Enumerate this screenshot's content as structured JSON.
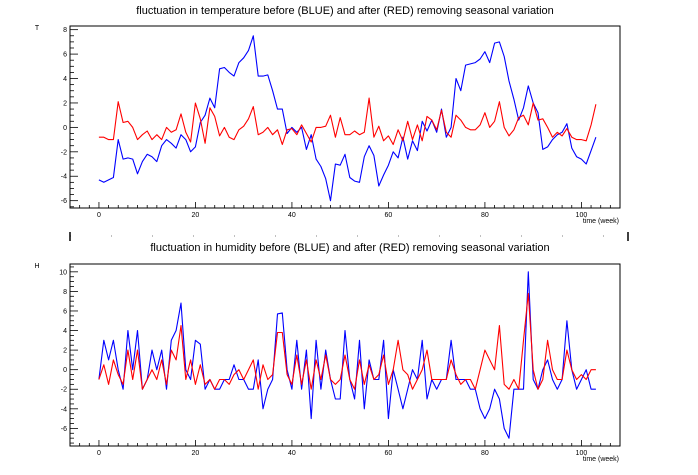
{
  "chart_data": [
    {
      "type": "line",
      "title": "fluctuation in temperature before (BLUE) and after (RED) removing seasonal variation",
      "xlabel": "time (week)",
      "ylabel": "T",
      "xlim": [
        -6,
        108
      ],
      "ylim": [
        -6.6,
        8.3
      ],
      "xticks": [
        0,
        20,
        40,
        60,
        80,
        100
      ],
      "yticks": [
        -6,
        -4,
        -2,
        0,
        2,
        4,
        6,
        8
      ],
      "grid": false,
      "series": [
        {
          "color": "#0000ff",
          "x": [
            0,
            1,
            2,
            3,
            4,
            5,
            6,
            7,
            8,
            9,
            10,
            11,
            12,
            13,
            14,
            15,
            16,
            17,
            18,
            19,
            20,
            21,
            22,
            23,
            24,
            25,
            26,
            27,
            28,
            29,
            30,
            31,
            32,
            33,
            34,
            35,
            36,
            37,
            38,
            39,
            40,
            41,
            42,
            43,
            44,
            45,
            46,
            47,
            48,
            49,
            50,
            51,
            52,
            53,
            54,
            55,
            56,
            57,
            58,
            59,
            60,
            61,
            62,
            63,
            64,
            65,
            66,
            67,
            68,
            69,
            70,
            71,
            72,
            73,
            74,
            75,
            76,
            77,
            78,
            79,
            80,
            81,
            82,
            83,
            84,
            85,
            86,
            87,
            88,
            89,
            90,
            91,
            92,
            93,
            94,
            95,
            96,
            97,
            98,
            99,
            100,
            101,
            102,
            103
          ],
          "values": [
            -4.3,
            -4.5,
            -4.3,
            -4.1,
            -1.0,
            -2.6,
            -2.5,
            -2.6,
            -3.8,
            -2.8,
            -2.2,
            -2.4,
            -2.8,
            -1.5,
            -1.0,
            -1.3,
            -1.7,
            -0.6,
            -1.0,
            -2.0,
            -1.6,
            0.4,
            1.0,
            2.4,
            1.6,
            4.8,
            4.9,
            4.5,
            4.2,
            5.3,
            5.7,
            6.3,
            7.5,
            4.2,
            4.2,
            4.3,
            3.0,
            1.5,
            1.5,
            -0.5,
            0.0,
            -0.4,
            0.0,
            -1.8,
            -0.6,
            -2.6,
            -3.2,
            -4.2,
            -6.0,
            -3.0,
            -3.1,
            -2.2,
            -4.1,
            -4.4,
            -4.5,
            -2.4,
            -1.5,
            -2.3,
            -4.8,
            -3.9,
            -3.1,
            -2.0,
            -2.5,
            -0.8,
            -2.6,
            -1.1,
            -1.9,
            0.5,
            -0.3,
            0.6,
            -0.4,
            1.5,
            -0.8,
            0.0,
            4.0,
            3.0,
            5.1,
            5.2,
            5.3,
            5.6,
            6.2,
            5.3,
            6.9,
            7.0,
            5.8,
            3.8,
            2.3,
            0.6,
            1.6,
            3.4,
            2.0,
            1.2,
            -1.8,
            -1.6,
            -1.0,
            -0.6,
            -0.4,
            0.3,
            -1.7,
            -2.4,
            -2.6,
            -3.0,
            -1.9,
            -0.8
          ]
        },
        {
          "color": "#ff0000",
          "x": [
            0,
            1,
            2,
            3,
            4,
            5,
            6,
            7,
            8,
            9,
            10,
            11,
            12,
            13,
            14,
            15,
            16,
            17,
            18,
            19,
            20,
            21,
            22,
            23,
            24,
            25,
            26,
            27,
            28,
            29,
            30,
            31,
            32,
            33,
            34,
            35,
            36,
            37,
            38,
            39,
            40,
            41,
            42,
            43,
            44,
            45,
            46,
            47,
            48,
            49,
            50,
            51,
            52,
            53,
            54,
            55,
            56,
            57,
            58,
            59,
            60,
            61,
            62,
            63,
            64,
            65,
            66,
            67,
            68,
            69,
            70,
            71,
            72,
            73,
            74,
            75,
            76,
            77,
            78,
            79,
            80,
            81,
            82,
            83,
            84,
            85,
            86,
            87,
            88,
            89,
            90,
            91,
            92,
            93,
            94,
            95,
            96,
            97,
            98,
            99,
            100,
            101,
            102,
            103
          ],
          "values": [
            -0.8,
            -0.8,
            -1.0,
            -1.0,
            2.1,
            0.4,
            0.5,
            0.0,
            -1.0,
            -0.6,
            -0.3,
            -1.0,
            -0.6,
            -1.0,
            0.0,
            -0.4,
            -0.2,
            1.1,
            -0.4,
            -1.2,
            2.0,
            0.7,
            -1.3,
            1.6,
            0.9,
            -0.7,
            0.0,
            -0.8,
            -1.0,
            -0.2,
            0.1,
            0.7,
            1.7,
            -0.6,
            -0.4,
            0.0,
            -0.6,
            -0.2,
            -1.4,
            -0.2,
            -0.1,
            -0.6,
            0.2,
            -0.5,
            -1.2,
            0.0,
            0.0,
            0.1,
            1.0,
            -0.8,
            0.8,
            -0.6,
            -0.6,
            -0.3,
            -0.6,
            -0.4,
            2.4,
            -0.8,
            0.1,
            -1.1,
            -0.7,
            -1.4,
            -0.2,
            -1.1,
            0.5,
            -1.0,
            0.2,
            -1.1,
            0.9,
            0.6,
            -0.2,
            1.4,
            -0.4,
            -0.8,
            1.0,
            0.6,
            0.0,
            -0.2,
            -0.2,
            0.2,
            1.2,
            0.0,
            0.5,
            2.1,
            0.0,
            -0.7,
            -0.2,
            0.8,
            1.0,
            0.2,
            2.0,
            0.6,
            0.7,
            0.0,
            -0.8,
            -0.4,
            -0.7,
            -0.1,
            -0.8,
            -1.0,
            -1.0,
            -1.1,
            0.2,
            1.9
          ]
        }
      ]
    },
    {
      "type": "line",
      "title": "fluctuation in humidity before (BLUE) and after (RED) removing seasonal variation",
      "xlabel": "time (week)",
      "ylabel": "H",
      "xlim": [
        -6,
        108
      ],
      "ylim": [
        -7.8,
        10.8
      ],
      "xticks": [
        0,
        20,
        40,
        60,
        80,
        100
      ],
      "yticks": [
        -6,
        -4,
        -2,
        0,
        2,
        4,
        6,
        8,
        10
      ],
      "grid": false,
      "series": [
        {
          "color": "#0000ff",
          "x": [
            0,
            1,
            2,
            3,
            4,
            5,
            6,
            7,
            8,
            9,
            10,
            11,
            12,
            13,
            14,
            15,
            16,
            17,
            18,
            19,
            20,
            21,
            22,
            23,
            24,
            25,
            26,
            27,
            28,
            29,
            30,
            31,
            32,
            33,
            34,
            35,
            36,
            37,
            38,
            39,
            40,
            41,
            42,
            43,
            44,
            45,
            46,
            47,
            48,
            49,
            50,
            51,
            52,
            53,
            54,
            55,
            56,
            57,
            58,
            59,
            60,
            61,
            62,
            63,
            64,
            65,
            66,
            67,
            68,
            69,
            70,
            71,
            72,
            73,
            74,
            75,
            76,
            77,
            78,
            79,
            80,
            81,
            82,
            83,
            84,
            85,
            86,
            87,
            88,
            89,
            90,
            91,
            92,
            93,
            94,
            95,
            96,
            97,
            98,
            99,
            100,
            101,
            102,
            103
          ],
          "values": [
            -1.0,
            3.0,
            1.0,
            3.0,
            0.0,
            -2.0,
            4.0,
            0.0,
            4.0,
            -2.0,
            -1.0,
            2.0,
            0.0,
            2.0,
            -2.0,
            3.0,
            4.0,
            6.8,
            0.0,
            -1.0,
            3.0,
            2.6,
            -2.0,
            -1.0,
            -2.0,
            -2.0,
            -1.0,
            -1.0,
            0.5,
            -1.0,
            -1.0,
            -2.0,
            -2.0,
            1.0,
            -4.0,
            -2.0,
            -1.0,
            5.7,
            5.8,
            0.0,
            -2.0,
            3.0,
            -2.0,
            2.0,
            -5.0,
            3.0,
            -2.0,
            2.0,
            -1.0,
            -3.0,
            -3.0,
            4.0,
            -1.0,
            -3.0,
            3.0,
            -4.0,
            1.0,
            -1.0,
            -1.0,
            3.0,
            -5.0,
            0.0,
            -2.0,
            -4.0,
            -2.0,
            0.0,
            -1.0,
            3.0,
            -3.0,
            -1.0,
            -2.0,
            -1.0,
            -1.0,
            3.0,
            -1.0,
            -1.0,
            -1.0,
            -2.0,
            -2.0,
            -4.0,
            -5.0,
            -4.0,
            -2.0,
            -3.0,
            -6.0,
            -7.0,
            -2.0,
            -2.0,
            -2.0,
            10.0,
            -1.0,
            -2.0,
            0.0,
            1.0,
            -1.0,
            -2.0,
            -1.0,
            5.0,
            0.0,
            -2.0,
            -1.0,
            0.0,
            -2.0,
            -2.0
          ]
        },
        {
          "color": "#ff0000",
          "x": [
            0,
            1,
            2,
            3,
            4,
            5,
            6,
            7,
            8,
            9,
            10,
            11,
            12,
            13,
            14,
            15,
            16,
            17,
            18,
            19,
            20,
            21,
            22,
            23,
            24,
            25,
            26,
            27,
            28,
            29,
            30,
            31,
            32,
            33,
            34,
            35,
            36,
            37,
            38,
            39,
            40,
            41,
            42,
            43,
            44,
            45,
            46,
            47,
            48,
            49,
            50,
            51,
            52,
            53,
            54,
            55,
            56,
            57,
            58,
            59,
            60,
            61,
            62,
            63,
            64,
            65,
            66,
            67,
            68,
            69,
            70,
            71,
            72,
            73,
            74,
            75,
            76,
            77,
            78,
            79,
            80,
            81,
            82,
            83,
            84,
            85,
            86,
            87,
            88,
            89,
            90,
            91,
            92,
            93,
            94,
            95,
            96,
            97,
            98,
            99,
            100,
            101,
            102,
            103
          ],
          "values": [
            -1.0,
            0.5,
            -1.5,
            1.0,
            -0.5,
            -1.5,
            2.0,
            -1.0,
            2.0,
            -2.0,
            -1.0,
            0.0,
            -1.0,
            1.0,
            -1.5,
            2.0,
            1.0,
            4.5,
            -1.0,
            1.0,
            -1.5,
            0.5,
            -1.5,
            -1.0,
            -2.0,
            -1.0,
            -1.0,
            -1.5,
            -0.5,
            0.0,
            -1.0,
            0.0,
            1.0,
            -2.0,
            0.5,
            -1.0,
            -0.5,
            3.8,
            3.8,
            -0.5,
            -1.5,
            1.5,
            -1.5,
            1.0,
            -2.0,
            1.0,
            -1.0,
            1.5,
            -1.0,
            -1.5,
            -1.0,
            1.5,
            -1.0,
            -2.0,
            1.0,
            -1.5,
            0.5,
            -1.0,
            -0.5,
            1.5,
            -1.5,
            0.0,
            3.0,
            0.0,
            -0.5,
            -2.0,
            -1.0,
            0.0,
            2.0,
            -1.0,
            -1.0,
            -1.0,
            -1.0,
            1.0,
            -0.5,
            -1.5,
            -1.0,
            -1.0,
            -2.0,
            0.0,
            2.0,
            1.0,
            0.0,
            4.5,
            -1.5,
            -2.0,
            -1.0,
            -2.0,
            3.0,
            7.8,
            0.0,
            -2.0,
            -1.0,
            3.0,
            0.0,
            -1.0,
            -1.0,
            2.0,
            0.0,
            -1.0,
            -0.5,
            -1.0,
            0.0,
            0.0
          ]
        }
      ]
    }
  ]
}
